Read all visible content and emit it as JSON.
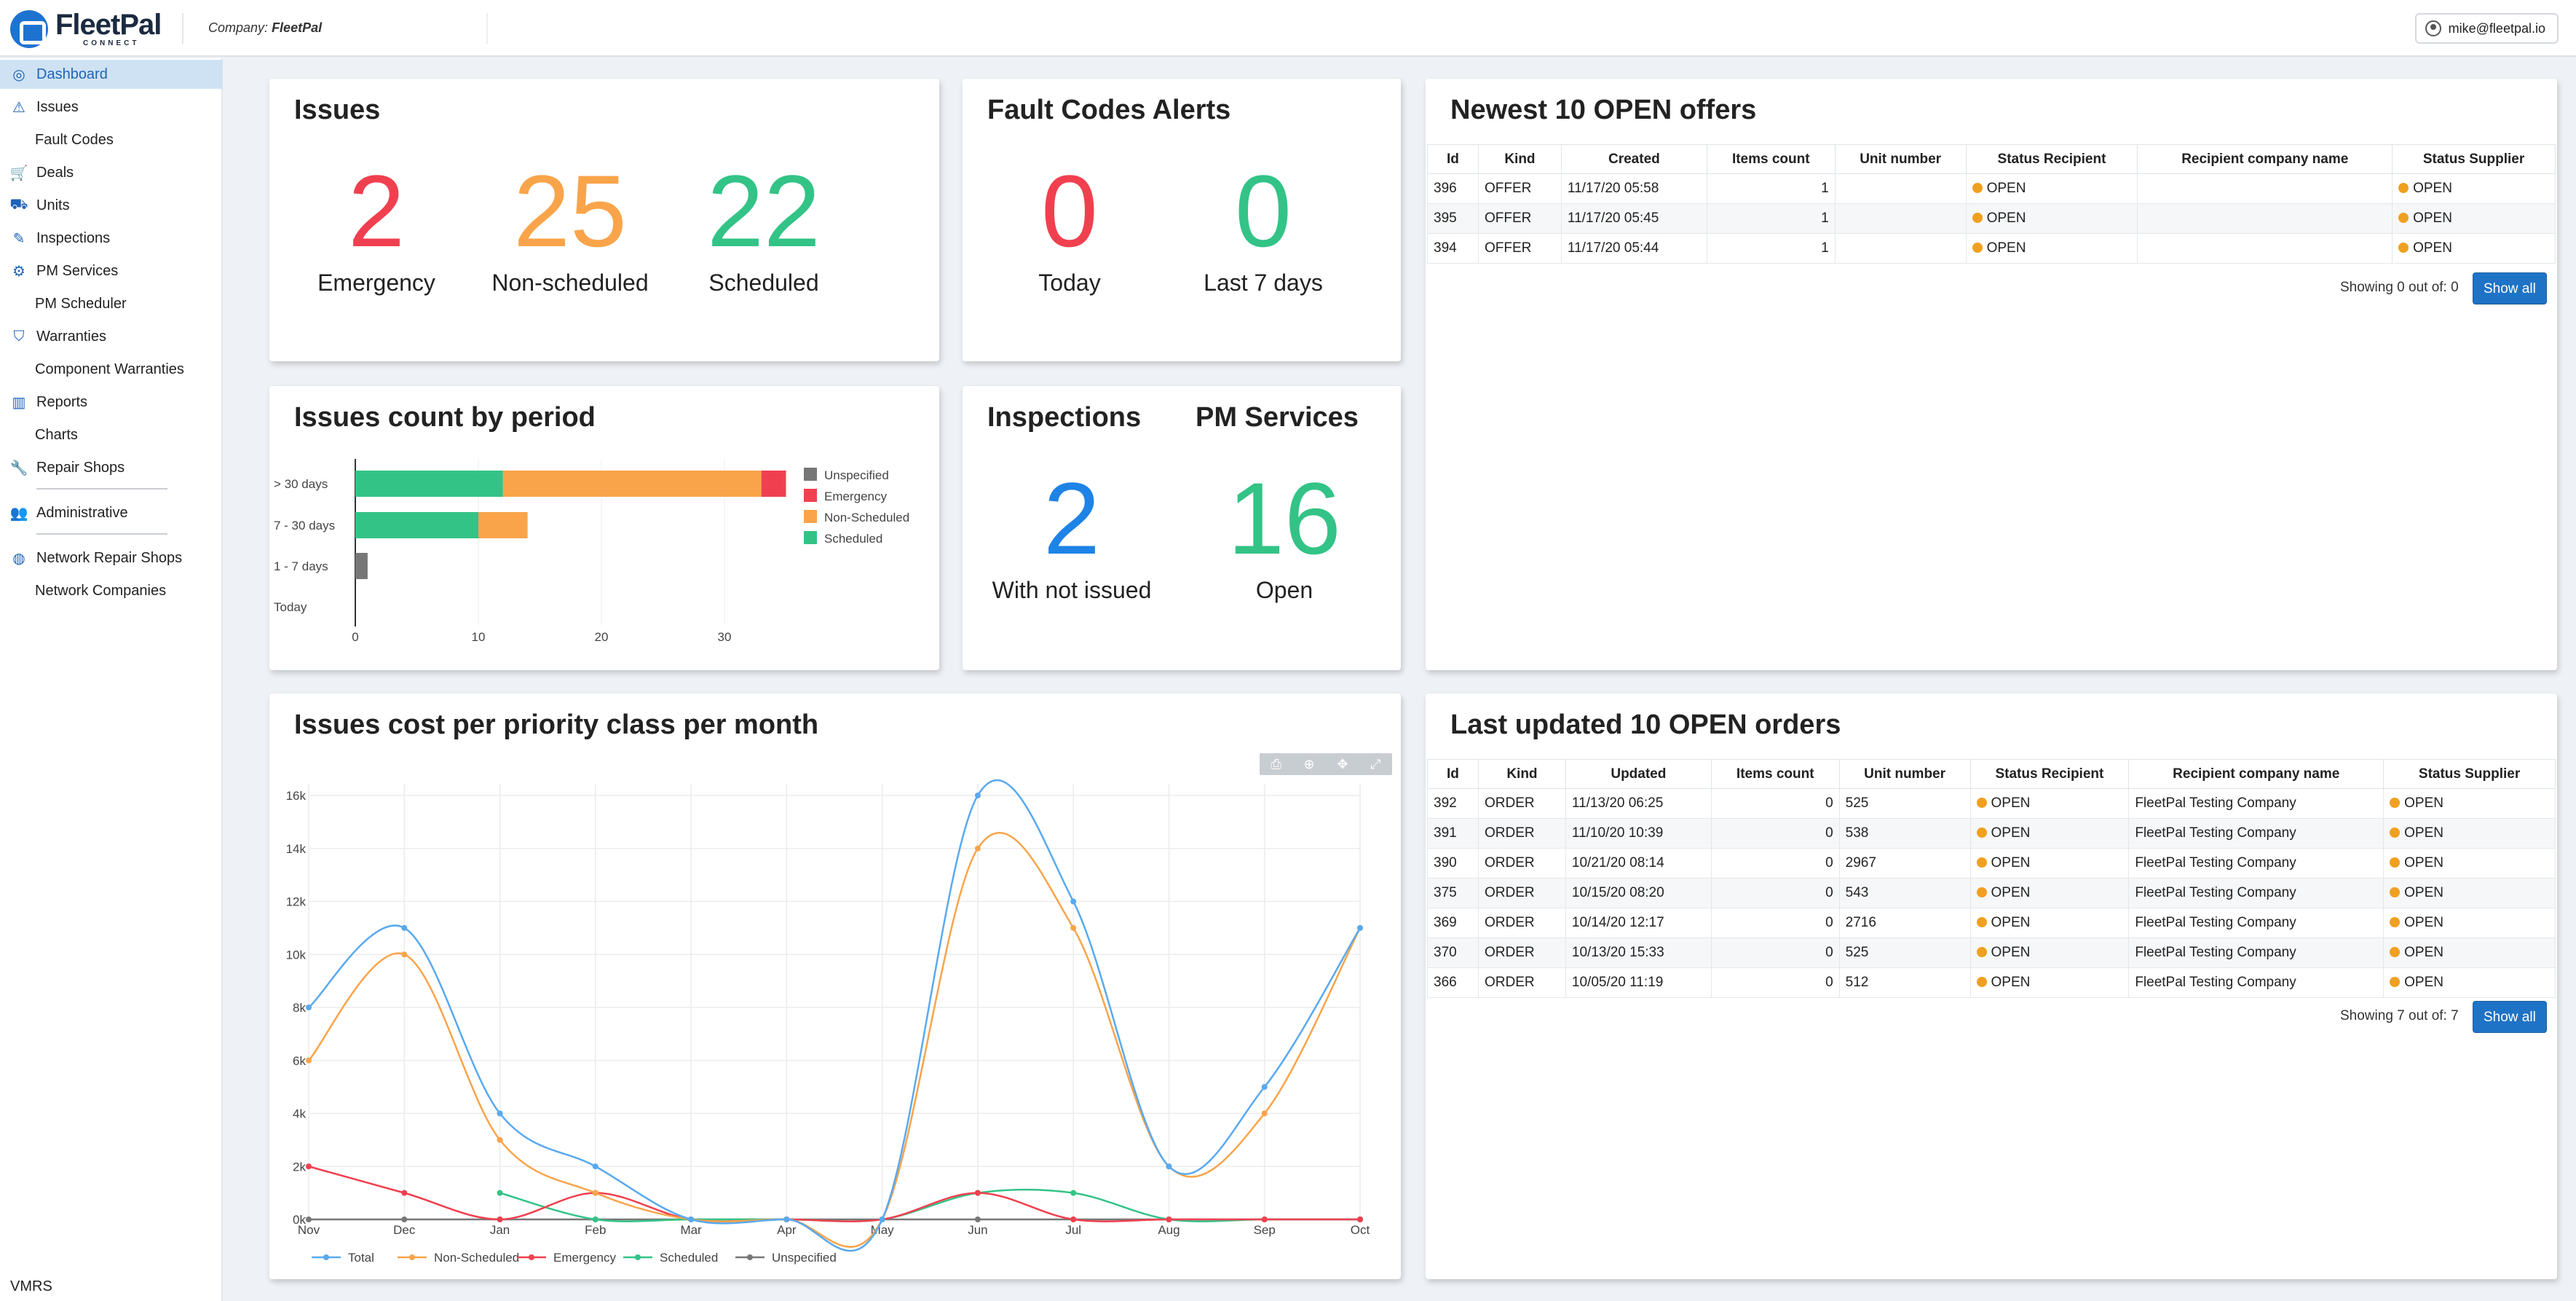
{
  "header": {
    "logo_name": "FleetPal",
    "logo_sub": "CONNECT",
    "company_label": "Company:",
    "company_name": "FleetPal",
    "user_email": "mike@fleetpal.io"
  },
  "sidebar": {
    "items": [
      {
        "label": "Dashboard",
        "icon": "gauge-icon",
        "glyph": "◎",
        "sub": false,
        "active": true
      },
      {
        "label": "Issues",
        "icon": "warning-icon",
        "glyph": "⚠",
        "sub": false
      },
      {
        "label": "Fault Codes",
        "icon": "",
        "glyph": "",
        "sub": true
      },
      {
        "label": "Deals",
        "icon": "cart-icon",
        "glyph": "🛒",
        "sub": false
      },
      {
        "label": "Units",
        "icon": "truck-icon",
        "glyph": "⛟",
        "sub": false
      },
      {
        "label": "Inspections",
        "icon": "edit-icon",
        "glyph": "✎",
        "sub": false
      },
      {
        "label": "PM Services",
        "icon": "wrench-cart-icon",
        "glyph": "⚙",
        "sub": false
      },
      {
        "label": "PM Scheduler",
        "icon": "",
        "glyph": "",
        "sub": true
      },
      {
        "label": "Warranties",
        "icon": "shield-icon",
        "glyph": "⛉",
        "sub": false
      },
      {
        "label": "Component Warranties",
        "icon": "",
        "glyph": "",
        "sub": true
      },
      {
        "label": "Reports",
        "icon": "chart-icon",
        "glyph": "▥",
        "sub": false
      },
      {
        "label": "Charts",
        "icon": "",
        "glyph": "",
        "sub": true
      },
      {
        "label": "Repair Shops",
        "icon": "wrench-icon",
        "glyph": "🔧",
        "sub": false
      },
      {
        "label": "Administrative",
        "icon": "users-icon",
        "glyph": "👥",
        "sub": false
      },
      {
        "label": "Network Repair Shops",
        "icon": "globe-icon",
        "glyph": "◍",
        "sub": false
      },
      {
        "label": "Network Companies",
        "icon": "",
        "glyph": "",
        "sub": true
      }
    ],
    "footer": "VMRS"
  },
  "issues_card": {
    "title": "Issues",
    "stats": [
      {
        "value": "2",
        "label": "Emergency",
        "color": "#f0404f"
      },
      {
        "value": "25",
        "label": "Non-scheduled",
        "color": "#f9a44a"
      },
      {
        "value": "22",
        "label": "Scheduled",
        "color": "#33c387"
      }
    ]
  },
  "fault_card": {
    "title": "Fault Codes Alerts",
    "stats": [
      {
        "value": "0",
        "label": "Today",
        "color": "#f0404f"
      },
      {
        "value": "0",
        "label": "Last 7 days",
        "color": "#33c387"
      }
    ]
  },
  "inspections_card": {
    "title": "Inspections",
    "value": "2",
    "label": "With not issued",
    "color": "#1e83e6"
  },
  "pm_card": {
    "title": "PM Services",
    "value": "16",
    "label": "Open",
    "color": "#33c387"
  },
  "offers": {
    "title": "Newest 10 OPEN offers",
    "columns": [
      "Id",
      "Kind",
      "Created",
      "Items count",
      "Unit number",
      "Status Recipient",
      "Recipient company name",
      "Status Supplier"
    ],
    "rows": [
      [
        "396",
        "OFFER",
        "11/17/20 05:58",
        "1",
        "",
        "OPEN",
        "",
        "OPEN"
      ],
      [
        "395",
        "OFFER",
        "11/17/20 05:45",
        "1",
        "",
        "OPEN",
        "",
        "OPEN"
      ],
      [
        "394",
        "OFFER",
        "11/17/20 05:44",
        "1",
        "",
        "OPEN",
        "",
        "OPEN"
      ]
    ],
    "showing": "Showing 0 out of: 0",
    "show_all": "Show all"
  },
  "orders": {
    "title": "Last updated 10 OPEN orders",
    "columns": [
      "Id",
      "Kind",
      "Updated",
      "Items count",
      "Unit number",
      "Status Recipient",
      "Recipient company name",
      "Status Supplier"
    ],
    "rows": [
      [
        "392",
        "ORDER",
        "11/13/20 06:25",
        "0",
        "525",
        "OPEN",
        "FleetPal Testing Company",
        "OPEN"
      ],
      [
        "391",
        "ORDER",
        "11/10/20 10:39",
        "0",
        "538",
        "OPEN",
        "FleetPal Testing Company",
        "OPEN"
      ],
      [
        "390",
        "ORDER",
        "10/21/20 08:14",
        "0",
        "2967",
        "OPEN",
        "FleetPal Testing Company",
        "OPEN"
      ],
      [
        "375",
        "ORDER",
        "10/15/20 08:20",
        "0",
        "543",
        "OPEN",
        "FleetPal Testing Company",
        "OPEN"
      ],
      [
        "369",
        "ORDER",
        "10/14/20 12:17",
        "0",
        "2716",
        "OPEN",
        "FleetPal Testing Company",
        "OPEN"
      ],
      [
        "370",
        "ORDER",
        "10/13/20 15:33",
        "0",
        "525",
        "OPEN",
        "FleetPal Testing Company",
        "OPEN"
      ],
      [
        "366",
        "ORDER",
        "10/05/20 11:19",
        "0",
        "512",
        "OPEN",
        "FleetPal Testing Company",
        "OPEN"
      ]
    ],
    "showing": "Showing 7 out of: 7",
    "show_all": "Show all"
  },
  "chart_data": [
    {
      "type": "bar",
      "orientation": "horizontal",
      "stacked": true,
      "title": "Issues count by period",
      "categories": [
        "> 30 days",
        "7 - 30 days",
        "1 - 7  days",
        "Today"
      ],
      "series": [
        {
          "name": "Unspecified",
          "color": "#777777",
          "values": [
            0,
            0,
            1,
            0
          ]
        },
        {
          "name": "Emergency",
          "color": "#f0404f",
          "values": [
            2,
            0,
            0,
            0
          ]
        },
        {
          "name": "Non-Scheduled",
          "color": "#f9a44a",
          "values": [
            21,
            4,
            0,
            0
          ]
        },
        {
          "name": "Scheduled",
          "color": "#33c387",
          "values": [
            12,
            10,
            0,
            0
          ]
        }
      ],
      "xticks": [
        0,
        10,
        20,
        30
      ],
      "xlim": [
        0,
        35
      ],
      "legend": "right",
      "grid": true
    },
    {
      "type": "line",
      "title": "Issues cost per priority class per month",
      "x": [
        "Nov",
        "Dec",
        "Jan",
        "Feb",
        "Mar",
        "Apr",
        "May",
        "Jun",
        "Jul",
        "Aug",
        "Sep",
        "Oct"
      ],
      "series": [
        {
          "name": "Total",
          "color": "#5aa9ef",
          "values": [
            8000,
            11000,
            4000,
            2000,
            0,
            0,
            0,
            16000,
            12000,
            2000,
            5000,
            11000
          ]
        },
        {
          "name": "Non-Scheduled",
          "color": "#f9a44a",
          "values": [
            6000,
            10000,
            3000,
            1000,
            0,
            0,
            0,
            14000,
            11000,
            2000,
            4000,
            11000
          ]
        },
        {
          "name": "Emergency",
          "color": "#f0404f",
          "values": [
            2000,
            1000,
            0,
            1000,
            0,
            0,
            0,
            1000,
            0,
            0,
            0,
            0
          ]
        },
        {
          "name": "Scheduled",
          "color": "#33c387",
          "values": [
            null,
            null,
            1000,
            0,
            0,
            0,
            0,
            1000,
            1000,
            0,
            0,
            0
          ]
        },
        {
          "name": "Unspecified",
          "color": "#777777",
          "values": [
            0,
            0,
            0,
            0,
            0,
            0,
            0,
            0,
            0,
            0,
            0,
            0
          ]
        }
      ],
      "yticks": [
        "0k",
        "2k",
        "4k",
        "6k",
        "8k",
        "10k",
        "12k",
        "14k",
        "16k"
      ],
      "ylim": [
        0,
        17000
      ],
      "legend": "bottom",
      "grid": true
    }
  ]
}
